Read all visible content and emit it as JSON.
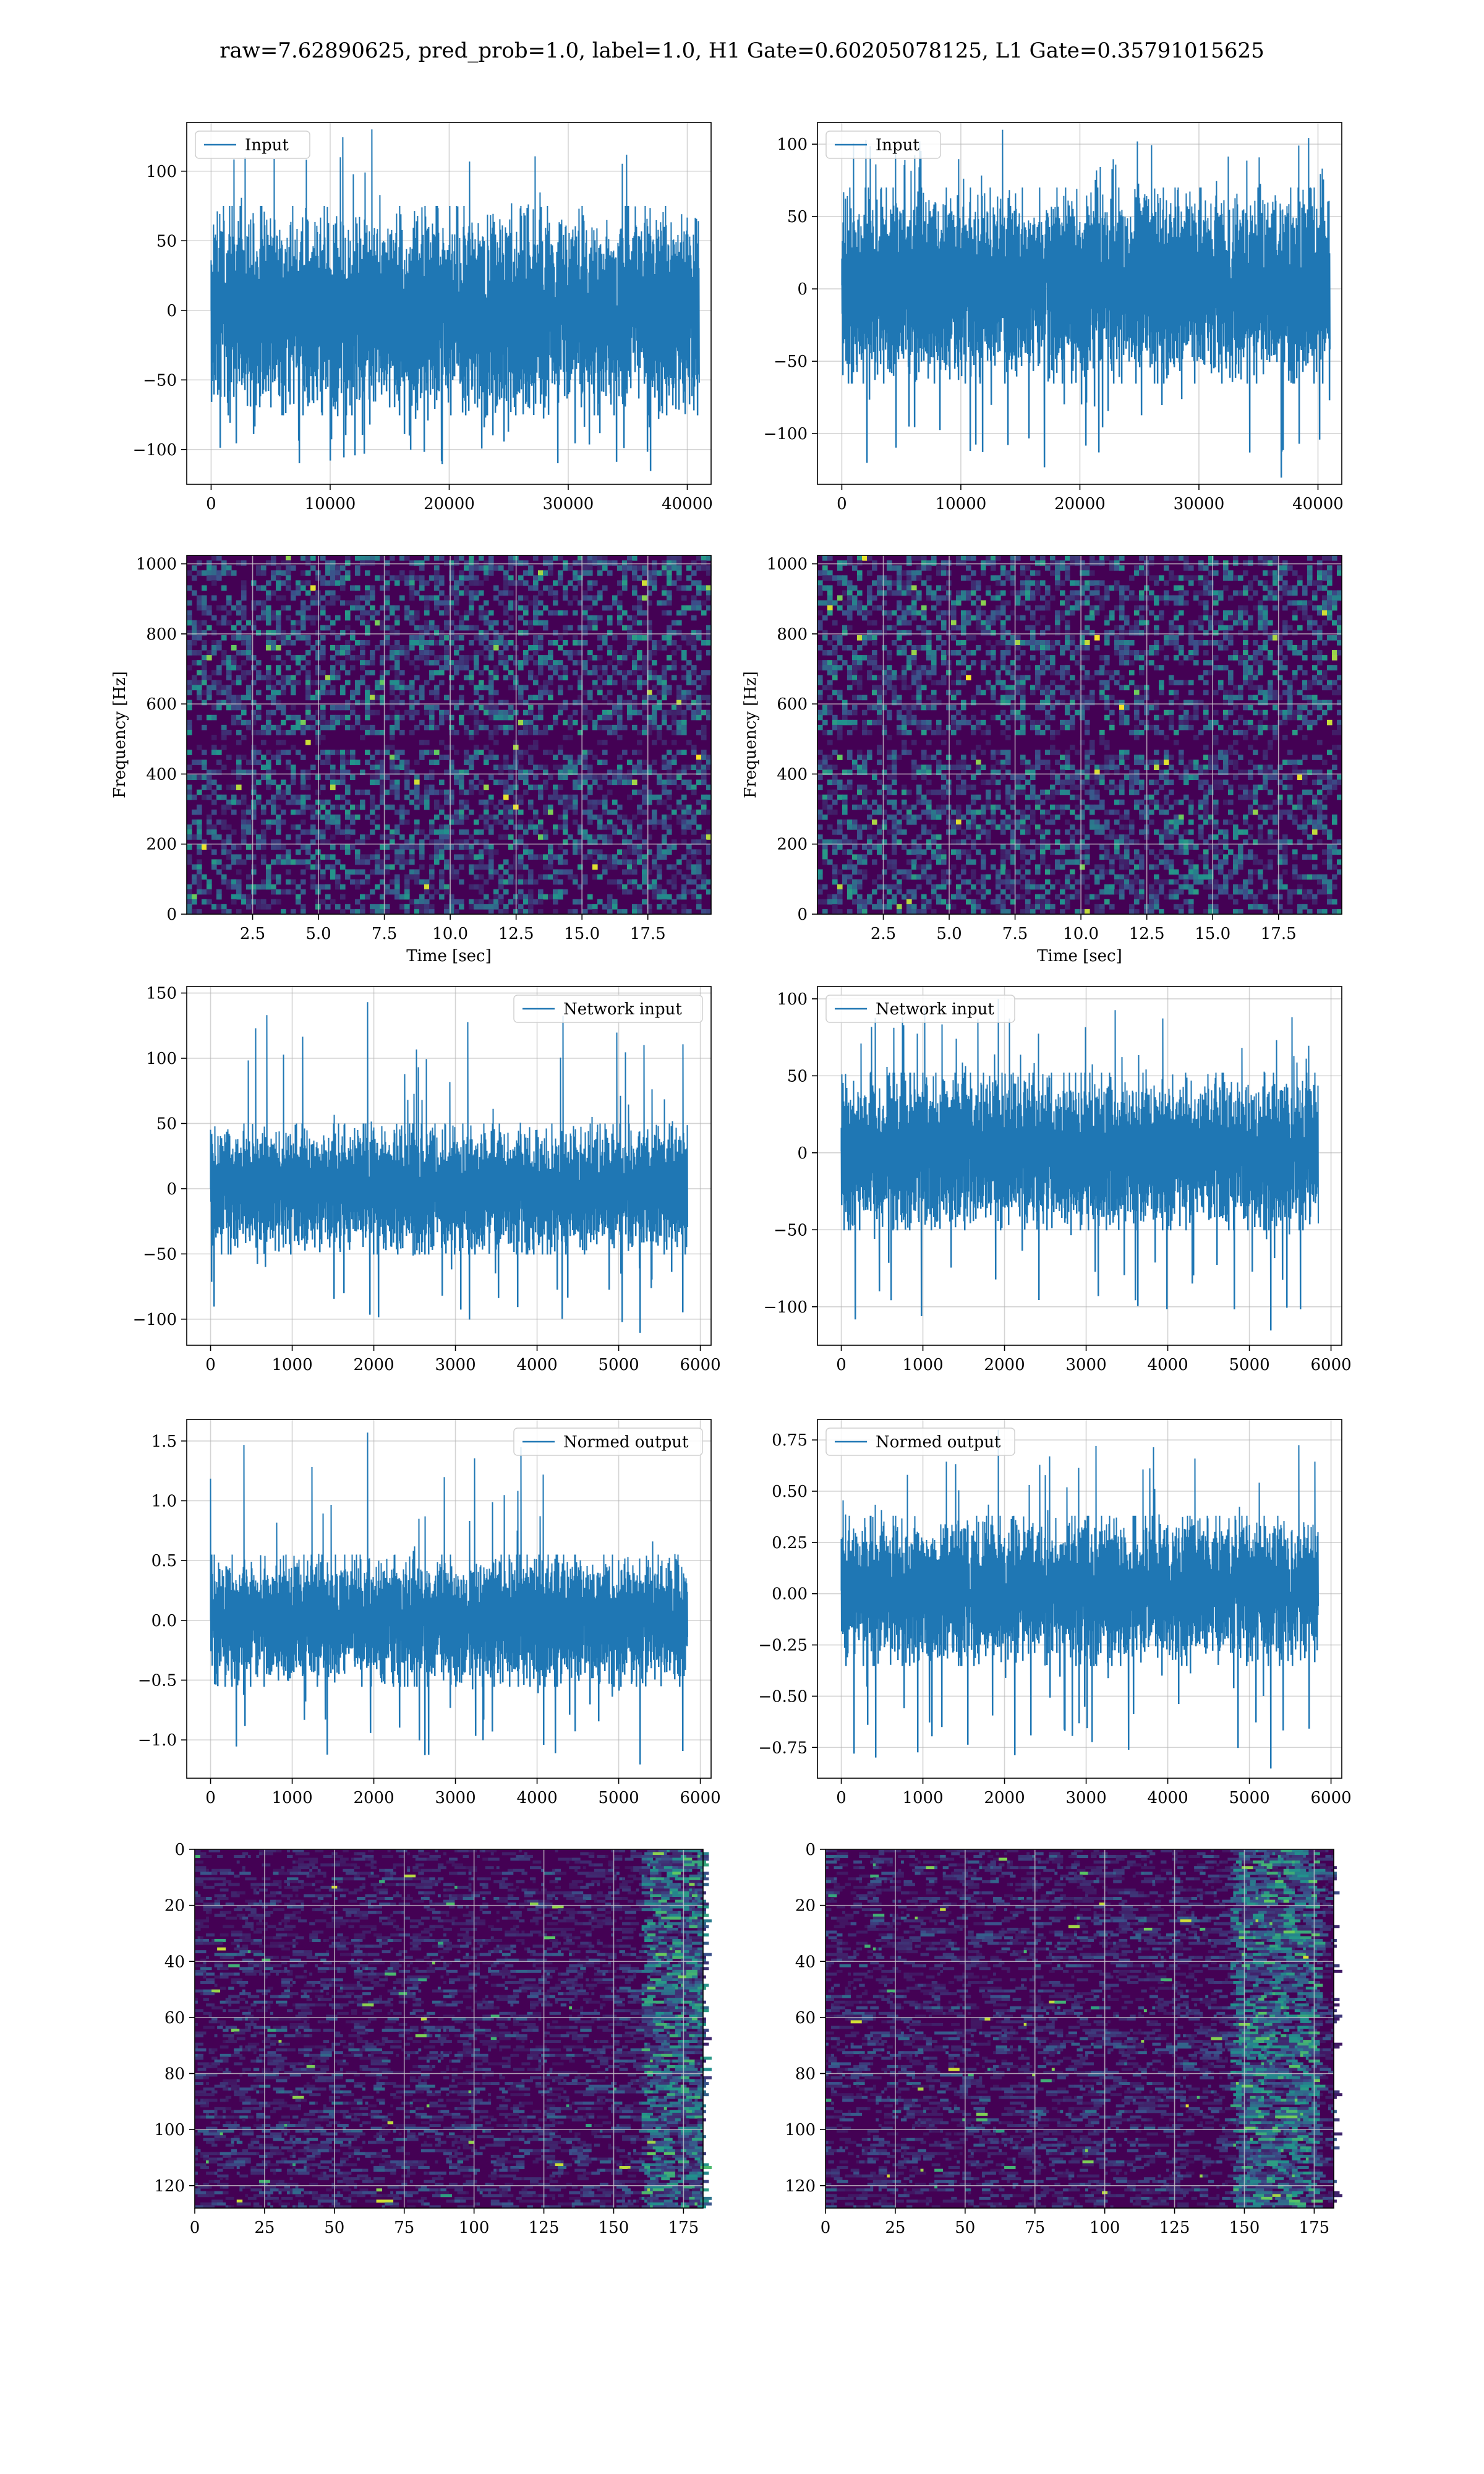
{
  "figure": {
    "suptitle": "raw=7.62890625, pred_prob=1.0, label=1.0, H1 Gate=0.60205078125, L1 Gate=0.35791015625"
  },
  "colors": {
    "line": "#1f77b4",
    "grid": "#b0b0b0",
    "viridis_low": "#440154",
    "viridis_high": "#fde725"
  },
  "chart_data": [
    {
      "id": "h1-input",
      "type": "line",
      "legend": "Input",
      "legend_loc": "upper left",
      "n_points": 40960,
      "xlim": [
        -2048,
        42000
      ],
      "ylim": [
        -125,
        135
      ],
      "xticks": [
        0,
        10000,
        20000,
        30000,
        40000
      ],
      "yticks": [
        -100,
        -50,
        0,
        50,
        100
      ],
      "envelope_typical": [
        -75,
        75
      ],
      "envelope_peaks": [
        -115,
        130
      ],
      "grid": true
    },
    {
      "id": "l1-input",
      "type": "line",
      "legend": "Input",
      "legend_loc": "upper left",
      "n_points": 40960,
      "xlim": [
        -2048,
        42000
      ],
      "ylim": [
        -135,
        115
      ],
      "xticks": [
        0,
        10000,
        20000,
        30000,
        40000
      ],
      "yticks": [
        -100,
        -50,
        0,
        50,
        100
      ],
      "envelope_typical": [
        -65,
        70
      ],
      "envelope_peaks": [
        -130,
        110
      ],
      "grid": true
    },
    {
      "id": "h1-spectrogram",
      "type": "heatmap",
      "colormap": "viridis",
      "xlabel": "Time [sec]",
      "ylabel": "Frequency [Hz]",
      "xlim": [
        0,
        19.9
      ],
      "ylim": [
        0,
        1024
      ],
      "xticks": [
        2.5,
        5.0,
        7.5,
        10.0,
        12.5,
        15.0,
        17.5
      ],
      "yticks": [
        0,
        200,
        400,
        600,
        800,
        1000
      ],
      "dark_band_hz": 500,
      "grid": true
    },
    {
      "id": "l1-spectrogram",
      "type": "heatmap",
      "colormap": "viridis",
      "xlabel": "Time [sec]",
      "ylabel": "Frequency [Hz]",
      "xlim": [
        0,
        19.9
      ],
      "ylim": [
        0,
        1024
      ],
      "xticks": [
        2.5,
        5.0,
        7.5,
        10.0,
        12.5,
        15.0,
        17.5
      ],
      "yticks": [
        0,
        200,
        400,
        600,
        800,
        1000
      ],
      "dark_band_hz": 500,
      "grid": true
    },
    {
      "id": "h1-network-input",
      "type": "line",
      "legend": "Network input",
      "legend_loc": "upper right",
      "n_points": 5840,
      "xlim": [
        -292,
        6132
      ],
      "ylim": [
        -120,
        155
      ],
      "xticks": [
        0,
        1000,
        2000,
        3000,
        4000,
        5000,
        6000
      ],
      "yticks": [
        -100,
        -50,
        0,
        50,
        100,
        150
      ],
      "envelope_typical": [
        -50,
        50
      ],
      "envelope_peaks": [
        -110,
        143
      ],
      "grid": true
    },
    {
      "id": "l1-network-input",
      "type": "line",
      "legend": "Network input",
      "legend_loc": "upper left",
      "n_points": 5840,
      "xlim": [
        -292,
        6132
      ],
      "ylim": [
        -125,
        108
      ],
      "xticks": [
        0,
        1000,
        2000,
        3000,
        4000,
        5000,
        6000
      ],
      "yticks": [
        -100,
        -50,
        0,
        50,
        100
      ],
      "envelope_typical": [
        -50,
        52
      ],
      "envelope_peaks": [
        -115,
        100
      ],
      "grid": true
    },
    {
      "id": "h1-normed-output",
      "type": "line",
      "legend": "Normed output",
      "legend_loc": "upper right",
      "n_points": 5840,
      "xlim": [
        -292,
        6132
      ],
      "ylim": [
        -1.32,
        1.68
      ],
      "xticks": [
        0,
        1000,
        2000,
        3000,
        4000,
        5000,
        6000
      ],
      "yticks": [
        -1.0,
        -0.5,
        0.0,
        0.5,
        1.0,
        1.5
      ],
      "envelope_typical": [
        -0.55,
        0.55
      ],
      "envelope_peaks": [
        -1.2,
        1.57
      ],
      "grid": true
    },
    {
      "id": "l1-normed-output",
      "type": "line",
      "legend": "Normed output",
      "legend_loc": "upper left",
      "n_points": 5840,
      "xlim": [
        -292,
        6132
      ],
      "ylim": [
        -0.9,
        0.85
      ],
      "xticks": [
        0,
        1000,
        2000,
        3000,
        4000,
        5000,
        6000
      ],
      "yticks": [
        -0.75,
        -0.5,
        -0.25,
        0.0,
        0.25,
        0.5,
        0.75
      ],
      "envelope_typical": [
        -0.35,
        0.38
      ],
      "envelope_peaks": [
        -0.85,
        0.8
      ],
      "grid": true
    },
    {
      "id": "h1-feature-map",
      "type": "heatmap",
      "colormap": "viridis",
      "n_rows": 128,
      "n_cols": 182,
      "xlim": [
        0,
        182
      ],
      "ylim": [
        128,
        0
      ],
      "xticks": [
        0,
        25,
        50,
        75,
        100,
        125,
        150,
        175
      ],
      "yticks": [
        0,
        20,
        40,
        60,
        80,
        100,
        120
      ],
      "hot_columns": [
        160,
        182
      ],
      "grid": true
    },
    {
      "id": "l1-feature-map",
      "type": "heatmap",
      "colormap": "viridis",
      "n_rows": 128,
      "n_cols": 182,
      "xlim": [
        0,
        182
      ],
      "ylim": [
        128,
        0
      ],
      "xticks": [
        0,
        25,
        50,
        75,
        100,
        125,
        150,
        175
      ],
      "yticks": [
        0,
        20,
        40,
        60,
        80,
        100,
        120
      ],
      "hot_columns": [
        145,
        175
      ],
      "grid": true
    }
  ]
}
